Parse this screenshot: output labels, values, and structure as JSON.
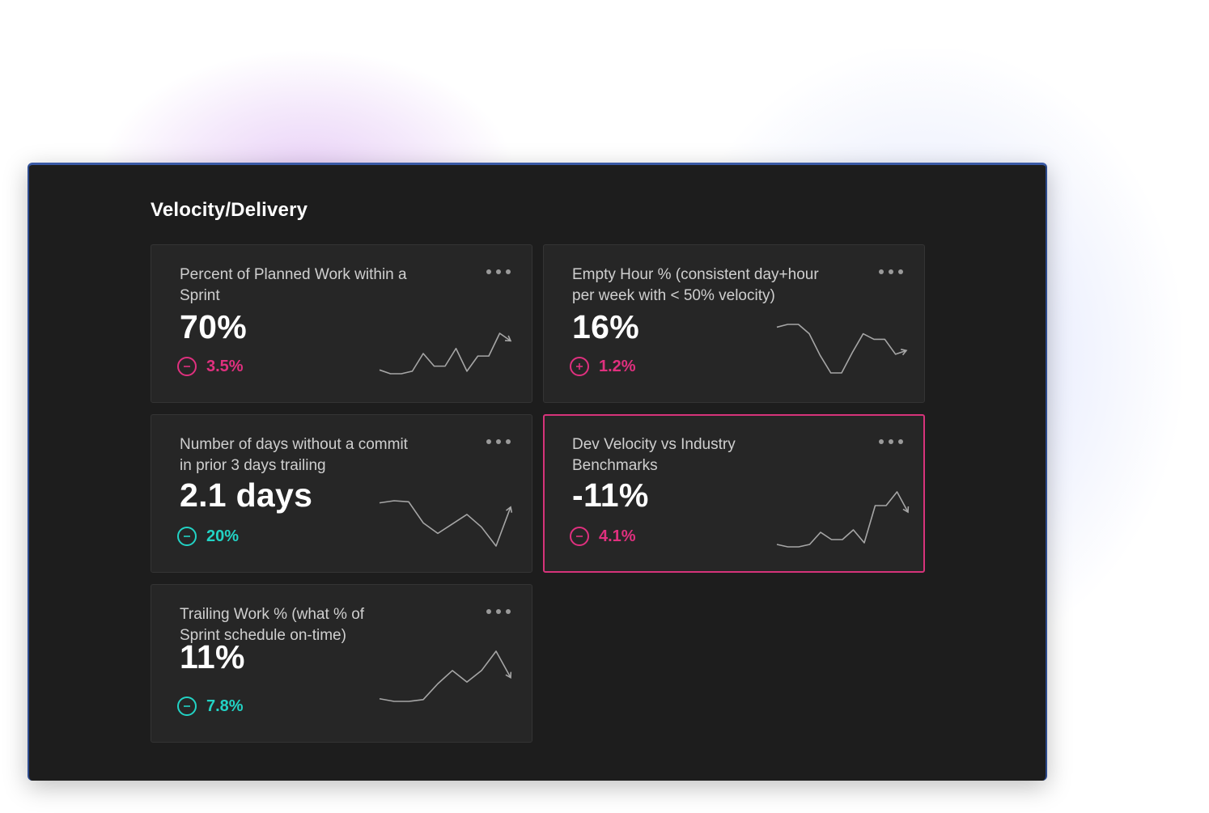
{
  "section": {
    "title": "Velocity/Delivery"
  },
  "colors": {
    "negative": "#e0307f",
    "positive": "#22d3c5",
    "highlight": "#d6337a",
    "sparkline": "#a6a6a6"
  },
  "cards": [
    {
      "title": "Percent of Planned Work within a Sprint",
      "value": "70%",
      "delta": "3.5%",
      "delta_icon": "minus-circle-icon",
      "delta_color": "pink",
      "highlighted": false,
      "sparkline": [
        18,
        15,
        15,
        17,
        31,
        21,
        21,
        35,
        17,
        29,
        29,
        47,
        41
      ]
    },
    {
      "title": "Empty Hour % (consistent day+hour per week with < 50% velocity)",
      "value": "16%",
      "delta": "1.2%",
      "delta_icon": "plus-circle-icon",
      "delta_color": "pink",
      "highlighted": false,
      "sparkline": [
        64,
        67,
        67,
        57,
        34,
        15,
        15,
        37,
        57,
        51,
        51,
        35,
        39
      ]
    },
    {
      "title": "Number of days without a commit in prior 3 days trailing",
      "value": "2.1 days",
      "delta": "20%",
      "delta_icon": "minus-circle-icon",
      "delta_color": "teal",
      "highlighted": false,
      "sparkline": [
        48,
        50,
        49,
        29,
        19,
        28,
        37,
        25,
        7,
        44
      ]
    },
    {
      "title": "Dev Velocity vs Industry Benchmarks",
      "value": "-11%",
      "delta": "4.1%",
      "delta_icon": "minus-circle-icon",
      "delta_color": "pink",
      "highlighted": true,
      "sparkline": [
        7,
        4,
        4,
        7,
        22,
        13,
        13,
        25,
        9,
        55,
        55,
        72,
        47
      ]
    },
    {
      "title": "Trailing Work % (what % of Sprint schedule on-time)",
      "value": "11%",
      "delta": "7.8%",
      "delta_icon": "minus-circle-icon",
      "delta_color": "teal",
      "highlighted": false,
      "sparkline": [
        12,
        9,
        9,
        11,
        29,
        44,
        31,
        44,
        66,
        36
      ]
    }
  ]
}
